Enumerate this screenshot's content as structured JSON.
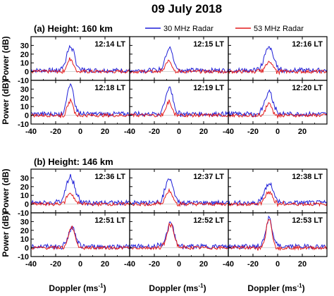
{
  "title": "09 July 2018",
  "legend": [
    {
      "label": "30 MHz Radar",
      "color": "#1f1fd8"
    },
    {
      "label": "53 MHz Radar",
      "color": "#e31a1c"
    }
  ],
  "chart_data": {
    "type": "line",
    "x_label": "Doppler (ms",
    "x_label_sup": "-1",
    "x_label_end": ")",
    "y_label": "Power (dB)",
    "x_ticks": [
      -40,
      -20,
      0,
      20
    ],
    "xlim": [
      -40,
      40
    ],
    "ylim": [
      -10,
      40
    ],
    "y_ticks": [
      -10,
      0,
      10,
      20,
      30
    ],
    "groups": [
      {
        "label": "(a) Height: 160 km",
        "panels": [
          {
            "time": "12:14 LT",
            "series": [
              {
                "name": "30 MHz Radar",
                "peak_x": -8,
                "peak_db": 27,
                "width": 3.2
              },
              {
                "name": "53 MHz Radar",
                "peak_x": -8,
                "peak_db": 15,
                "width": 2.4
              }
            ]
          },
          {
            "time": "12:15 LT",
            "series": [
              {
                "name": "30 MHz Radar",
                "peak_x": -8,
                "peak_db": 26,
                "width": 3.0
              },
              {
                "name": "53 MHz Radar",
                "peak_x": -8,
                "peak_db": 13,
                "width": 2.4
              }
            ]
          },
          {
            "time": "12:16 LT",
            "series": [
              {
                "name": "30 MHz Radar",
                "peak_x": -7,
                "peak_db": 26,
                "width": 3.6
              },
              {
                "name": "53 MHz Radar",
                "peak_x": -7,
                "peak_db": 12,
                "width": 2.6
              }
            ]
          },
          {
            "time": "12:18 LT",
            "series": [
              {
                "name": "30 MHz Radar",
                "peak_x": -8,
                "peak_db": 32,
                "width": 2.8
              },
              {
                "name": "53 MHz Radar",
                "peak_x": -8,
                "peak_db": 17,
                "width": 2.2
              }
            ]
          },
          {
            "time": "12:19 LT",
            "series": [
              {
                "name": "30 MHz Radar",
                "peak_x": -8,
                "peak_db": 30,
                "width": 3.0
              },
              {
                "name": "53 MHz Radar",
                "peak_x": -8,
                "peak_db": 15,
                "width": 2.4
              }
            ]
          },
          {
            "time": "12:20 LT",
            "series": [
              {
                "name": "30 MHz Radar",
                "peak_x": -7,
                "peak_db": 24,
                "width": 3.4
              },
              {
                "name": "53 MHz Radar",
                "peak_x": -7,
                "peak_db": 14,
                "width": 2.4
              }
            ]
          }
        ]
      },
      {
        "label": "(b) Height: 146 km",
        "panels": [
          {
            "time": "12:36 LT",
            "series": [
              {
                "name": "30 MHz Radar",
                "peak_x": -8,
                "peak_db": 29,
                "width": 3.6
              },
              {
                "name": "53 MHz Radar",
                "peak_x": -8,
                "peak_db": 12,
                "width": 3.0
              }
            ]
          },
          {
            "time": "12:37 LT",
            "series": [
              {
                "name": "30 MHz Radar",
                "peak_x": -8,
                "peak_db": 27,
                "width": 3.2
              },
              {
                "name": "53 MHz Radar",
                "peak_x": -8,
                "peak_db": 14,
                "width": 3.0
              }
            ]
          },
          {
            "time": "12:38 LT",
            "series": [
              {
                "name": "30 MHz Radar",
                "peak_x": -7,
                "peak_db": 22,
                "width": 3.4
              },
              {
                "name": "53 MHz Radar",
                "peak_x": -7,
                "peak_db": 14,
                "width": 3.0
              }
            ]
          },
          {
            "time": "12:51 LT",
            "series": [
              {
                "name": "30 MHz Radar",
                "peak_x": -7,
                "peak_db": 22,
                "width": 2.8
              },
              {
                "name": "53 MHz Radar",
                "peak_x": -7,
                "peak_db": 24,
                "width": 2.6
              }
            ]
          },
          {
            "time": "12:52 LT",
            "series": [
              {
                "name": "30 MHz Radar",
                "peak_x": -7,
                "peak_db": 26,
                "width": 3.0
              },
              {
                "name": "53 MHz Radar",
                "peak_x": -7,
                "peak_db": 27,
                "width": 2.8
              }
            ]
          },
          {
            "time": "12:53 LT",
            "series": [
              {
                "name": "30 MHz Radar",
                "peak_x": -7,
                "peak_db": 32,
                "width": 2.6
              },
              {
                "name": "53 MHz Radar",
                "peak_x": -7,
                "peak_db": 32,
                "width": 2.4
              }
            ]
          }
        ]
      }
    ]
  }
}
